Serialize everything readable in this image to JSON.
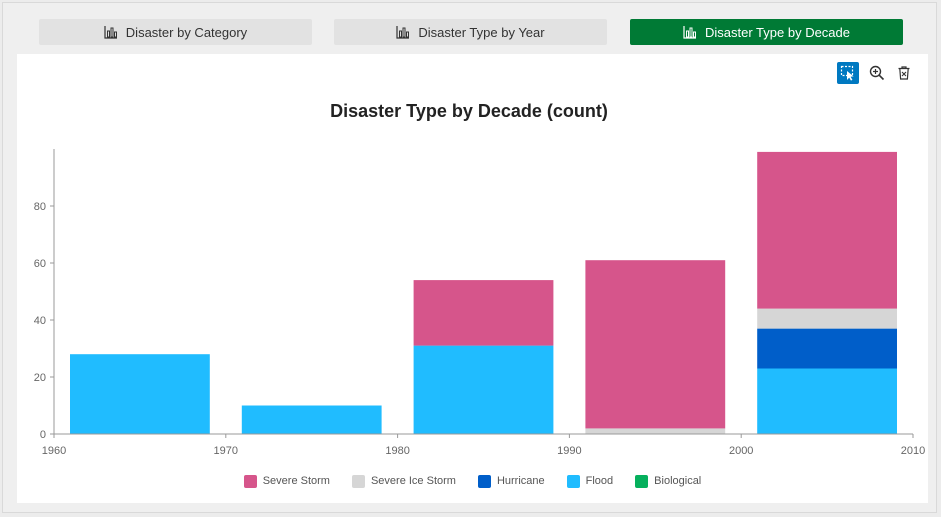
{
  "tabs": [
    {
      "label": "Disaster by Category",
      "active": false
    },
    {
      "label": "Disaster Type by Year",
      "active": false
    },
    {
      "label": "Disaster Type by Decade",
      "active": true
    }
  ],
  "toolbar": {
    "tools": [
      "select-icon",
      "zoom-icon",
      "clear-selection-icon"
    ]
  },
  "colors": {
    "accent": "#007a35",
    "tool_active": "#0079c1"
  },
  "chart_data": {
    "type": "bar",
    "stacked": true,
    "title": "Disaster Type by Decade (count)",
    "xlabel": "",
    "ylabel": "",
    "x_ticks": [
      1960,
      1970,
      1980,
      1990,
      2000,
      2010
    ],
    "y_ticks": [
      0,
      20,
      40,
      60,
      80
    ],
    "xlim": [
      1960,
      2010
    ],
    "ylim": [
      0,
      100
    ],
    "bins": [
      [
        1960,
        1970
      ],
      [
        1970,
        1980
      ],
      [
        1980,
        1990
      ],
      [
        1990,
        2000
      ],
      [
        2000,
        2010
      ]
    ],
    "series": [
      {
        "name": "Flood",
        "color": "#20bcff",
        "values": [
          28,
          10,
          31,
          0,
          23
        ]
      },
      {
        "name": "Hurricane",
        "color": "#005ec9",
        "values": [
          0,
          0,
          0,
          0,
          14
        ]
      },
      {
        "name": "Severe Ice Storm",
        "color": "#d6d6d6",
        "values": [
          0,
          0,
          0,
          2,
          7
        ]
      },
      {
        "name": "Severe Storm",
        "color": "#d6558b",
        "values": [
          0,
          0,
          23,
          59,
          55
        ]
      },
      {
        "name": "Biological",
        "color": "#06b05d",
        "values": [
          0,
          0,
          0,
          0,
          0
        ]
      }
    ],
    "legend": {
      "position": "bottom-center",
      "items": [
        {
          "name": "Severe Storm",
          "color": "#d6558b"
        },
        {
          "name": "Severe Ice Storm",
          "color": "#d6d6d6"
        },
        {
          "name": "Hurricane",
          "color": "#005ec9"
        },
        {
          "name": "Flood",
          "color": "#20bcff"
        },
        {
          "name": "Biological",
          "color": "#06b05d"
        }
      ]
    },
    "grid": false
  }
}
